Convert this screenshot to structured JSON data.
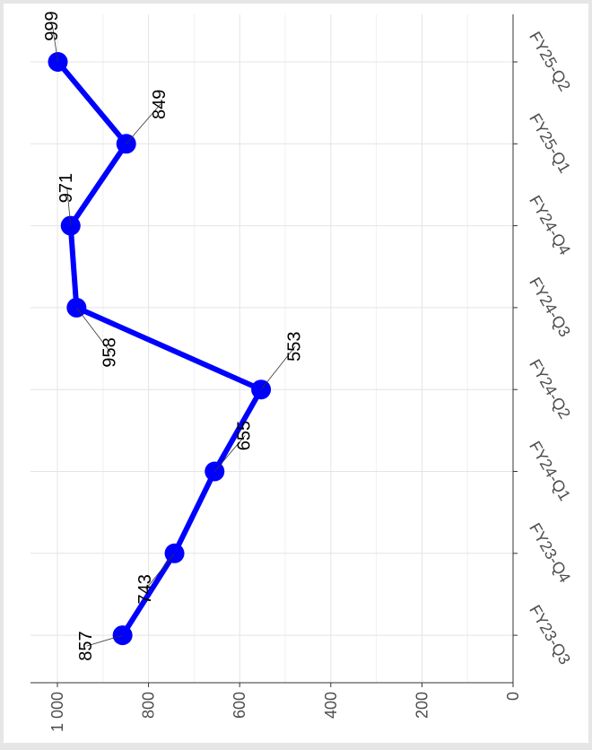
{
  "chart_data": {
    "type": "line",
    "categories": [
      "FY23-Q3",
      "FY23-Q4",
      "FY24-Q1",
      "FY24-Q2",
      "FY24-Q3",
      "FY24-Q4",
      "FY25-Q1",
      "FY25-Q2"
    ],
    "series": [
      {
        "values": [
          857,
          743,
          655,
          553,
          958,
          971,
          849,
          999
        ],
        "color": "#0000ff"
      }
    ],
    "data_labels": [
      "857",
      "743",
      "655",
      "553",
      "958",
      "971",
      "849",
      "999"
    ],
    "y_ticks": [
      0,
      200,
      400,
      600,
      800,
      1000
    ],
    "y_tick_labels": [
      "0",
      "200",
      "400",
      "600",
      "800",
      "1 000"
    ],
    "ylim": [
      0,
      1040
    ],
    "grid": true,
    "orientation": "rotated-90-clockwise",
    "title": "",
    "xlabel": "",
    "ylabel": ""
  }
}
